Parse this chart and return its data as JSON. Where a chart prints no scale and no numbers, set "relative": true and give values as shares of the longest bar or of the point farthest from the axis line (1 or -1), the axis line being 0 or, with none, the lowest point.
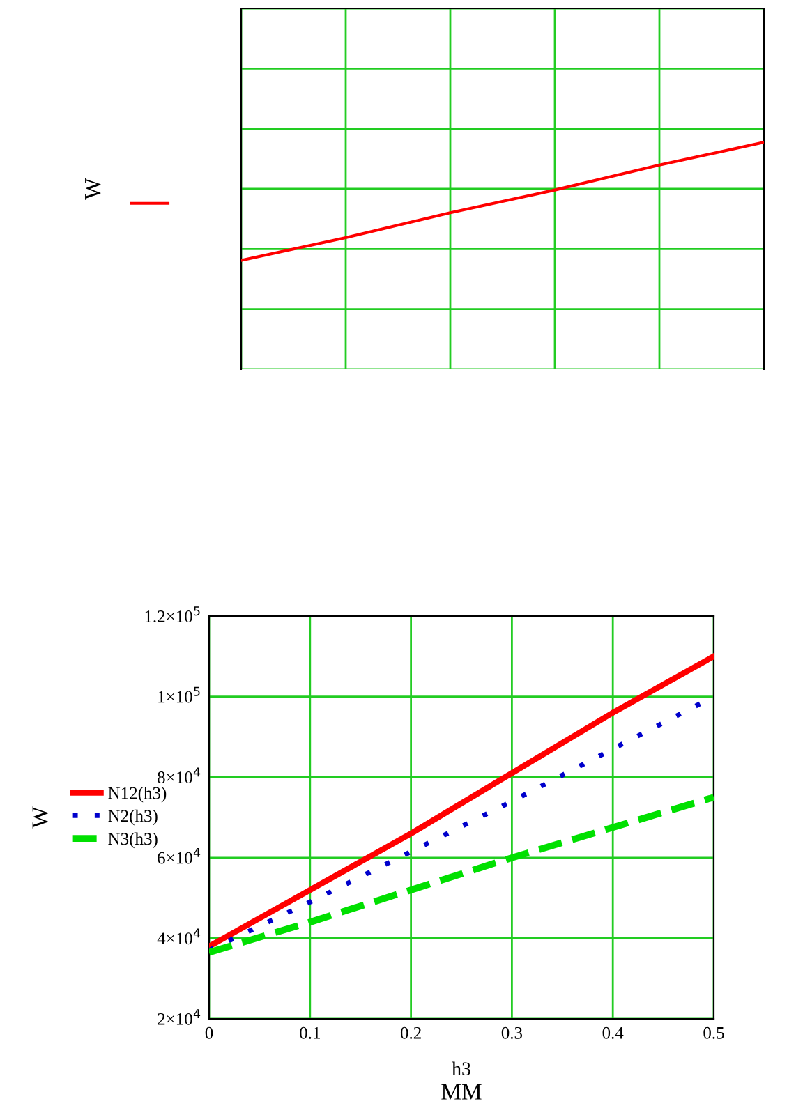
{
  "chart_data": [
    {
      "type": "line",
      "relative": true,
      "ylabel": "W",
      "categories": [
        null,
        null,
        null,
        null,
        null,
        null
      ],
      "grid": true,
      "marker": "none",
      "series": [
        {
          "color": "#ff0000",
          "line_style": "solid",
          "values": [
            0.48,
            0.58,
            0.69,
            0.79,
            0.9,
            1
          ]
        }
      ]
    },
    {
      "type": "line",
      "xlabel": "h3",
      "ylabel": "W",
      "annotations": [
        "MM"
      ],
      "grid": true,
      "legend": "left",
      "marker": "none",
      "xlim": [
        0,
        0.5
      ],
      "xticks": [
        0,
        0.1,
        0.2,
        0.3,
        0.4,
        0.5
      ],
      "ylim": [
        20000,
        120000
      ],
      "yticks": [
        {
          "value": 20000,
          "label": "2×10$^{4}$"
        },
        {
          "value": 40000,
          "label": "4×10$^{4}$"
        },
        {
          "value": 60000,
          "label": "6×10$^{4}$"
        },
        {
          "value": 80000,
          "label": "8×10$^{4}$"
        },
        {
          "value": 100000,
          "label": "1×10$^{5}$"
        },
        {
          "value": 120000,
          "label": "1.2×10$^{5}$"
        }
      ],
      "x": [
        0,
        0.1,
        0.2,
        0.3,
        0.4,
        0.5
      ],
      "series": [
        {
          "name": "N12(h3)",
          "color": "#ff0000",
          "line_style": "solid",
          "values": [
            38000,
            52000,
            66000,
            81000,
            96000,
            110000
          ]
        },
        {
          "name": "N2(h3)",
          "color": "#0000cc",
          "line_style": "dotted",
          "values": [
            37000,
            49000,
            61500,
            74000,
            87000,
            100000
          ]
        },
        {
          "name": "N3(h3)",
          "color": "#00e000",
          "line_style": "dashed",
          "values": [
            36500,
            44000,
            52000,
            60000,
            67500,
            75000
          ]
        }
      ]
    }
  ]
}
